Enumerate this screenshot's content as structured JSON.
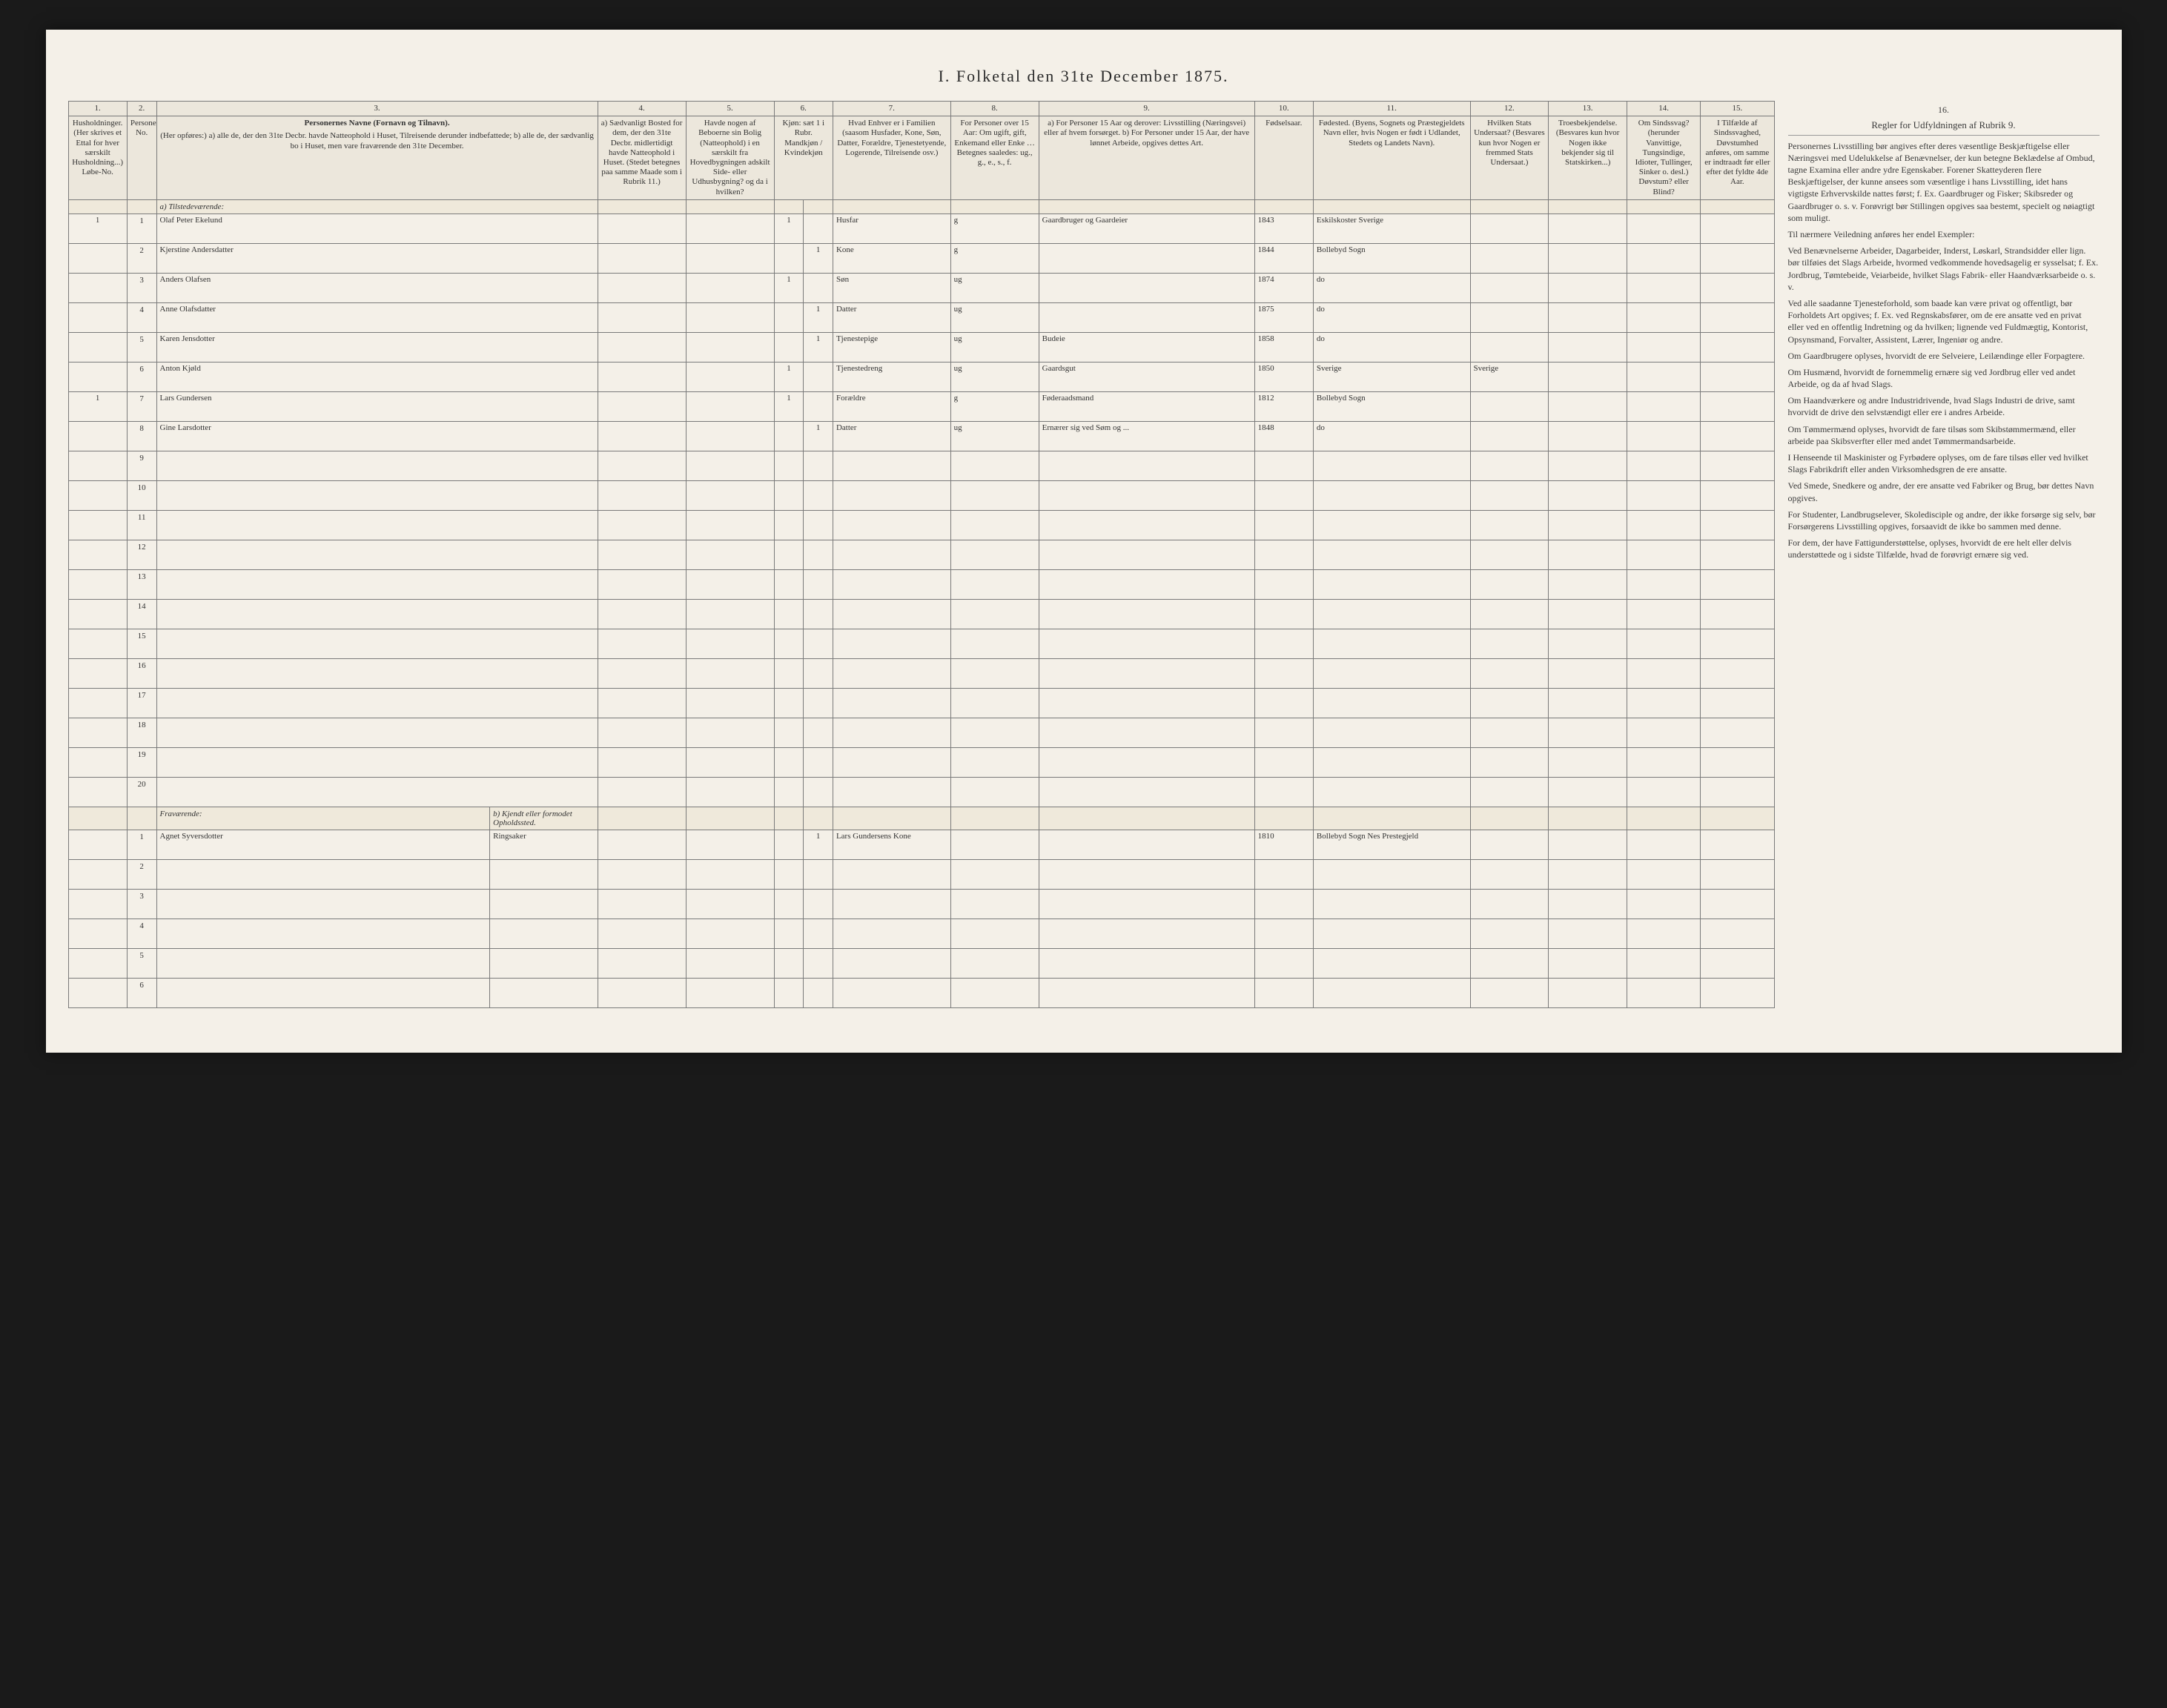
{
  "title": "I. Folketal den 31te December 1875.",
  "columns": {
    "numbers": [
      "1.",
      "2.",
      "3.",
      "4.",
      "5.",
      "6.",
      "7.",
      "8.",
      "9.",
      "10.",
      "11.",
      "12.",
      "13.",
      "14.",
      "15.",
      "16."
    ],
    "c1": "Husholdninger.\n(Her skrives et Ettal for hver særskilt Husholdning...)\nLøbe-No.",
    "c2": "Personernes No.",
    "c3_title": "Personernes Navne (Fornavn og Tilnavn).",
    "c3_body": "(Her opføres:)\na) alle de, der den 31te Decbr. havde Natteophold i Huset, Tilreisende derunder indbefattede;\nb) alle de, der sædvanlig bo i Huset, men vare fraværende den 31te December.",
    "c4": "a) Sædvanligt Bosted for dem, der den 31te Decbr. midlertidigt havde Natteophold i Huset. (Stedet betegnes paa samme Maade som i Rubrik 11.)",
    "c5": "Havde nogen af Beboerne sin Bolig (Natteophold) i en særskilt fra Hovedbygningen adskilt Side- eller Udhusbygning? og da i hvilken?",
    "c6": "Kjøn:\nsæt 1 i Rubr. Mandkjøn / Kvindekjøn",
    "c7": "Hvad Enhver er i Familien\n(saasom Husfader, Kone, Søn, Datter, Forældre, Tjenestetyende, Logerende, Tilreisende osv.)",
    "c8": "For Personer over 15 Aar: Om ugift, gift, Enkemand eller Enke … Betegnes saaledes: ug., g., e., s., f.",
    "c9": "a) For Personer 15 Aar og derover: Livsstilling (Næringsvei) eller af hvem forsørget.\nb) For Personer under 15 Aar, der have lønnet Arbeide, opgives dettes Art.",
    "c10": "Fødselsaar.",
    "c11": "Fødested.\n(Byens, Sognets og Præstegjeldets Navn eller, hvis Nogen er født i Udlandet, Stedets og Landets Navn).",
    "c12": "Hvilken Stats Undersaat?\n(Besvares kun hvor Nogen er fremmed Stats Undersaat.)",
    "c13": "Troesbekjendelse.\n(Besvares kun hvor Nogen ikke bekjender sig til Statskirken...)",
    "c14": "Om Sindssvag? (herunder Vanvittige, Tungsindige, Idioter, Tullinger, Sinker o. desl.) Døvstum? eller Blind?",
    "c15": "I Tilfælde af Sindssvaghed, Døvstumhed anføres, om samme er indtraadt før eller efter det fyldte 4de Aar.",
    "c16": "Regler for Udfyldningen af Rubrik 9."
  },
  "section_present": "a) Tilstedeværende:",
  "section_absent_a": "Fraværende:",
  "section_absent_b": "b) Kjendt eller formodet Opholdssted.",
  "present": [
    {
      "hh": "1",
      "no": "1",
      "name": "Olaf Peter Ekelund",
      "c4": "",
      "c5": "",
      "m": "1",
      "k": "",
      "rel": "Husfar",
      "civ": "g",
      "occ": "Gaardbruger og Gaardeier",
      "year": "1843",
      "birthplace": "Eskilskoster Sverige",
      "c12": "",
      "c13": "",
      "c14": "",
      "c15": ""
    },
    {
      "hh": "",
      "no": "2",
      "name": "Kjerstine Andersdatter",
      "c4": "",
      "c5": "",
      "m": "",
      "k": "1",
      "rel": "Kone",
      "civ": "g",
      "occ": "",
      "year": "1844",
      "birthplace": "Bollebyd Sogn",
      "c12": "",
      "c13": "",
      "c14": "",
      "c15": ""
    },
    {
      "hh": "",
      "no": "3",
      "name": "Anders Olafsen",
      "c4": "",
      "c5": "",
      "m": "1",
      "k": "",
      "rel": "Søn",
      "civ": "ug",
      "occ": "",
      "year": "1874",
      "birthplace": "do",
      "c12": "",
      "c13": "",
      "c14": "",
      "c15": ""
    },
    {
      "hh": "",
      "no": "4",
      "name": "Anne Olafsdatter",
      "c4": "",
      "c5": "",
      "m": "",
      "k": "1",
      "rel": "Datter",
      "civ": "ug",
      "occ": "",
      "year": "1875",
      "birthplace": "do",
      "c12": "",
      "c13": "",
      "c14": "",
      "c15": ""
    },
    {
      "hh": "",
      "no": "5",
      "name": "Karen Jensdotter",
      "c4": "",
      "c5": "",
      "m": "",
      "k": "1",
      "rel": "Tjenestepige",
      "civ": "ug",
      "occ": "Budeie",
      "year": "1858",
      "birthplace": "do",
      "c12": "",
      "c13": "",
      "c14": "",
      "c15": ""
    },
    {
      "hh": "",
      "no": "6",
      "name": "Anton Kjøld",
      "c4": "",
      "c5": "",
      "m": "1",
      "k": "",
      "rel": "Tjenestedreng",
      "civ": "ug",
      "occ": "Gaardsgut",
      "year": "1850",
      "birthplace": "Sverige",
      "c12": "Sverige",
      "c13": "",
      "c14": "",
      "c15": ""
    },
    {
      "hh": "1",
      "no": "7",
      "name": "Lars Gundersen",
      "c4": "",
      "c5": "",
      "m": "1",
      "k": "",
      "rel": "Forældre",
      "civ": "g",
      "occ": "Føderaadsmand",
      "year": "1812",
      "birthplace": "Bollebyd Sogn",
      "c12": "",
      "c13": "",
      "c14": "",
      "c15": ""
    },
    {
      "hh": "",
      "no": "8",
      "name": "Gine Larsdotter",
      "c4": "",
      "c5": "",
      "m": "",
      "k": "1",
      "rel": "Datter",
      "civ": "ug",
      "occ": "Ernærer sig ved Søm og ...",
      "year": "1848",
      "birthplace": "do",
      "c12": "",
      "c13": "",
      "c14": "",
      "c15": ""
    }
  ],
  "present_empty": [
    "9",
    "10",
    "11",
    "12",
    "13",
    "14",
    "15",
    "16",
    "17",
    "18",
    "19",
    "20"
  ],
  "absent": [
    {
      "hh": "",
      "no": "1",
      "name": "Agnet Syversdotter",
      "place": "Ringsaker",
      "m": "",
      "k": "1",
      "rel": "Lars Gundersens Kone",
      "civ": "",
      "occ": "",
      "year": "1810",
      "birthplace": "Bollebyd Sogn Nes Prestegjeld",
      "c12": "",
      "c13": "",
      "c14": "",
      "c15": ""
    }
  ],
  "absent_empty": [
    "2",
    "3",
    "4",
    "5",
    "6"
  ],
  "instructions": {
    "heading": "Regler for Udfyldningen af Rubrik 9.",
    "paras": [
      "Personernes Livsstilling bør angives efter deres væsentlige Beskjæftigelse eller Næringsvei med Udelukkelse af Benævnelser, der kun betegne Beklædelse af Ombud, tagne Examina eller andre ydre Egenskaber. Forener Skatteyderen flere Beskjæftigelser, der kunne ansees som væsentlige i hans Livsstilling, idet hans vigtigste Erhvervskilde nattes først; f. Ex. Gaardbruger og Fisker; Skibsreder og Gaardbruger o. s. v. Forøvrigt bør Stillingen opgives saa bestemt, specielt og nøiagtigt som muligt.",
      "Til nærmere Veiledning anføres her endel Exempler:",
      "Ved Benævnelserne Arbeider, Dagarbeider, Inderst, Løskarl, Strandsidder eller lign. bør tilføies det Slags Arbeide, hvormed vedkommende hovedsagelig er sysselsat; f. Ex. Jordbrug, Tømtebeide, Veiarbeide, hvilket Slags Fabrik- eller Haandværksarbeide o. s. v.",
      "Ved alle saadanne Tjenesteforhold, som baade kan være privat og offentligt, bør Forholdets Art opgives; f. Ex. ved Regnskabsfører, om de ere ansatte ved en privat eller ved en offentlig Indretning og da hvilken; lignende ved Fuldmægtig, Kontorist, Opsynsmand, Forvalter, Assistent, Lærer, Ingeniør og andre.",
      "Om Gaardbrugere oplyses, hvorvidt de ere Selveiere, Leilændinge eller Forpagtere.",
      "Om Husmænd, hvorvidt de fornemmelig ernære sig ved Jordbrug eller ved andet Arbeide, og da af hvad Slags.",
      "Om Haandværkere og andre Industridrivende, hvad Slags Industri de drive, samt hvorvidt de drive den selvstændigt eller ere i andres Arbeide.",
      "Om Tømmermænd oplyses, hvorvidt de fare tilsøs som Skibstømmermænd, eller arbeide paa Skibsverfter eller med andet Tømmermandsarbeide.",
      "I Henseende til Maskinister og Fyrbødere oplyses, om de fare tilsøs eller ved hvilket Slags Fabrikdrift eller anden Virksomhedsgren de ere ansatte.",
      "Ved Smede, Snedkere og andre, der ere ansatte ved Fabriker og Brug, bør dettes Navn opgives.",
      "For Studenter, Landbrugselever, Skoledisciple og andre, der ikke forsørge sig selv, bør Forsørgerens Livsstilling opgives, forsaavidt de ikke bo sammen med denne.",
      "For dem, der have Fattigunderstøttelse, oplyses, hvorvidt de ere helt eller delvis understøttede og i sidste Tilfælde, hvad de forøvrigt ernære sig ved."
    ]
  }
}
